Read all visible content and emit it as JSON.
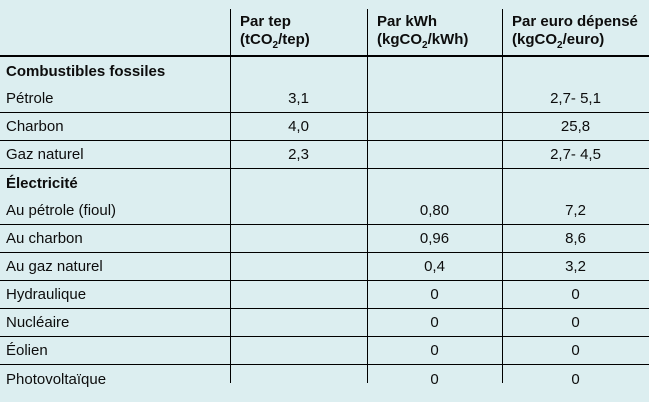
{
  "colors": {
    "background": "#dceef0",
    "rule": "#000000",
    "text": "#0d0d0d"
  },
  "chart_data": {
    "type": "table",
    "title": "",
    "column_headers": [
      {
        "line1": "Par tep",
        "line2": "(tCO2/tep)",
        "line2_pre": "(tCO",
        "line2_sub": "2",
        "line2_post": "/tep)"
      },
      {
        "line1": "Par kWh",
        "line2": "(kgCO2/kWh)",
        "line2_pre": "(kgCO",
        "line2_sub": "2",
        "line2_post": "/kWh)"
      },
      {
        "line1": "Par euro dépensé",
        "line2": "(kgCO2/euro)",
        "line2_pre": "(kgCO",
        "line2_sub": "2",
        "line2_post": "/euro)"
      }
    ],
    "rows": [
      {
        "label": "Combustibles fossiles",
        "section": true,
        "par_tep": "",
        "par_kwh": "",
        "par_euro": ""
      },
      {
        "label": "Pétrole",
        "section": false,
        "par_tep": "3,1",
        "par_kwh": "",
        "par_euro": "2,7- 5,1"
      },
      {
        "label": "Charbon",
        "section": false,
        "par_tep": "4,0",
        "par_kwh": "",
        "par_euro": "25,8"
      },
      {
        "label": "Gaz naturel",
        "section": false,
        "par_tep": "2,3",
        "par_kwh": "",
        "par_euro": "2,7- 4,5"
      },
      {
        "label": "Électricité",
        "section": true,
        "par_tep": "",
        "par_kwh": "",
        "par_euro": ""
      },
      {
        "label": "Au pétrole (fioul)",
        "section": false,
        "par_tep": "",
        "par_kwh": "0,80",
        "par_euro": "7,2"
      },
      {
        "label": "Au charbon",
        "section": false,
        "par_tep": "",
        "par_kwh": "0,96",
        "par_euro": "8,6"
      },
      {
        "label": "Au gaz naturel",
        "section": false,
        "par_tep": "",
        "par_kwh": "0,4",
        "par_euro": "3,2"
      },
      {
        "label": "Hydraulique",
        "section": false,
        "par_tep": "",
        "par_kwh": "0",
        "par_euro": "0"
      },
      {
        "label": "Nucléaire",
        "section": false,
        "par_tep": "",
        "par_kwh": "0",
        "par_euro": "0"
      },
      {
        "label": "Éolien",
        "section": false,
        "par_tep": "",
        "par_kwh": "0",
        "par_euro": "0"
      },
      {
        "label": "Photovoltaïque",
        "section": false,
        "par_tep": "",
        "par_kwh": "0",
        "par_euro": "0"
      }
    ]
  }
}
